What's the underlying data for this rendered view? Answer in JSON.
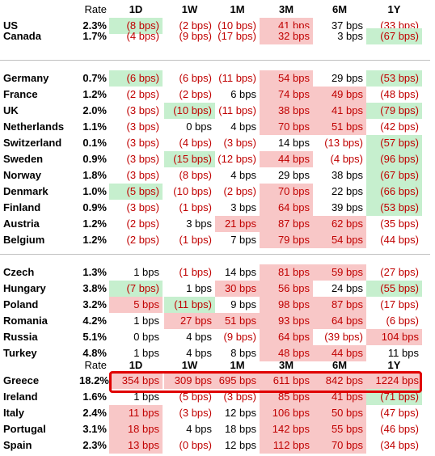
{
  "header_labels": [
    "Rate",
    "1D",
    "1W",
    "1M",
    "3M",
    "6M",
    "1Y"
  ],
  "colors": {
    "negative_text": "#c00000",
    "red_fill": "#f8c7c7",
    "green_fill": "#c6efce",
    "box": "#e00000"
  },
  "rows": [
    {
      "name": "US",
      "rate": "2.3%",
      "values": [
        "(8 bps)",
        "(2 bps)",
        "(10 bps)",
        "41 bps",
        "37 bps",
        "(33 bps)"
      ],
      "fills": [
        "g",
        "",
        "",
        "r",
        "",
        ""
      ]
    },
    {
      "name": "Canada",
      "rate": "1.7%",
      "values": [
        "(4 bps)",
        "(9 bps)",
        "(17 bps)",
        "32 bps",
        "3 bps",
        "(67 bps)"
      ],
      "fills": [
        "",
        "",
        "",
        "r",
        "",
        "g"
      ]
    },
    {
      "name": "Germany",
      "rate": "0.7%",
      "values": [
        "(6 bps)",
        "(6 bps)",
        "(11 bps)",
        "54 bps",
        "29 bps",
        "(53 bps)"
      ],
      "fills": [
        "g",
        "",
        "",
        "r",
        "",
        "g"
      ]
    },
    {
      "name": "France",
      "rate": "1.2%",
      "values": [
        "(2 bps)",
        "(2 bps)",
        "6 bps",
        "74 bps",
        "49 bps",
        "(48 bps)"
      ],
      "fills": [
        "",
        "",
        "",
        "r",
        "r",
        ""
      ]
    },
    {
      "name": "UK",
      "rate": "2.0%",
      "values": [
        "(3 bps)",
        "(10 bps)",
        "(11 bps)",
        "38 bps",
        "41 bps",
        "(79 bps)"
      ],
      "fills": [
        "",
        "g",
        "",
        "r",
        "r",
        "g"
      ]
    },
    {
      "name": "Netherlands",
      "rate": "1.1%",
      "values": [
        "(3 bps)",
        "0 bps",
        "4 bps",
        "70 bps",
        "51 bps",
        "(42 bps)"
      ],
      "fills": [
        "",
        "",
        "",
        "r",
        "r",
        ""
      ]
    },
    {
      "name": "Switzerland",
      "rate": "0.1%",
      "values": [
        "(3 bps)",
        "(4 bps)",
        "(3 bps)",
        "14 bps",
        "(13 bps)",
        "(57 bps)"
      ],
      "fills": [
        "",
        "",
        "",
        "",
        "",
        "g"
      ]
    },
    {
      "name": "Sweden",
      "rate": "0.9%",
      "values": [
        "(3 bps)",
        "(15 bps)",
        "(12 bps)",
        "44 bps",
        "(4 bps)",
        "(96 bps)"
      ],
      "fills": [
        "",
        "g",
        "",
        "r",
        "",
        "g"
      ]
    },
    {
      "name": "Norway",
      "rate": "1.8%",
      "values": [
        "(3 bps)",
        "(8 bps)",
        "4 bps",
        "29 bps",
        "38 bps",
        "(67 bps)"
      ],
      "fills": [
        "",
        "",
        "",
        "",
        "",
        "g"
      ]
    },
    {
      "name": "Denmark",
      "rate": "1.0%",
      "values": [
        "(5 bps)",
        "(10 bps)",
        "(2 bps)",
        "70 bps",
        "22 bps",
        "(66 bps)"
      ],
      "fills": [
        "g",
        "",
        "",
        "r",
        "",
        "g"
      ]
    },
    {
      "name": "Finland",
      "rate": "0.9%",
      "values": [
        "(3 bps)",
        "(1 bps)",
        "3 bps",
        "64 bps",
        "39 bps",
        "(53 bps)"
      ],
      "fills": [
        "",
        "",
        "",
        "r",
        "",
        "g"
      ]
    },
    {
      "name": "Austria",
      "rate": "1.2%",
      "values": [
        "(2 bps)",
        "3 bps",
        "21 bps",
        "87 bps",
        "62 bps",
        "(35 bps)"
      ],
      "fills": [
        "",
        "",
        "r",
        "r",
        "r",
        ""
      ]
    },
    {
      "name": "Belgium",
      "rate": "1.2%",
      "values": [
        "(2 bps)",
        "(1 bps)",
        "7 bps",
        "79 bps",
        "54 bps",
        "(44 bps)"
      ],
      "fills": [
        "",
        "",
        "",
        "r",
        "r",
        ""
      ]
    },
    {
      "name": "Czech",
      "rate": "1.3%",
      "values": [
        "1 bps",
        "(1 bps)",
        "14 bps",
        "81 bps",
        "59 bps",
        "(27 bps)"
      ],
      "fills": [
        "",
        "",
        "",
        "r",
        "r",
        ""
      ]
    },
    {
      "name": "Hungary",
      "rate": "3.8%",
      "values": [
        "(7 bps)",
        "1 bps",
        "30 bps",
        "56 bps",
        "24 bps",
        "(55 bps)"
      ],
      "fills": [
        "g",
        "",
        "r",
        "r",
        "",
        "g"
      ]
    },
    {
      "name": "Poland",
      "rate": "3.2%",
      "values": [
        "5 bps",
        "(11 bps)",
        "9 bps",
        "98 bps",
        "87 bps",
        "(17 bps)"
      ],
      "fills": [
        "r",
        "g",
        "",
        "r",
        "r",
        ""
      ]
    },
    {
      "name": "Romania",
      "rate": "4.2%",
      "values": [
        "1 bps",
        "27 bps",
        "51 bps",
        "93 bps",
        "64 bps",
        "(6 bps)"
      ],
      "fills": [
        "",
        "r",
        "r",
        "r",
        "r",
        ""
      ]
    },
    {
      "name": "Russia",
      "rate": "5.1%",
      "values": [
        "0 bps",
        "4 bps",
        "(9 bps)",
        "64 bps",
        "(39 bps)",
        "104 bps"
      ],
      "fills": [
        "",
        "",
        "",
        "r",
        "",
        "r"
      ]
    },
    {
      "name": "Turkey",
      "rate": "4.8%",
      "values": [
        "1 bps",
        "4 bps",
        "8 bps",
        "48 bps",
        "44 bps",
        "11 bps"
      ],
      "fills": [
        "",
        "",
        "",
        "r",
        "r",
        ""
      ]
    },
    {
      "name": "Greece",
      "rate": "18.2%",
      "values": [
        "354 bps",
        "309 bps",
        "695 bps",
        "611 bps",
        "842 bps",
        "1224 bps"
      ],
      "fills": [
        "r",
        "r",
        "r",
        "r",
        "r",
        "r"
      ]
    },
    {
      "name": "Ireland",
      "rate": "1.6%",
      "values": [
        "1 bps",
        "(5 bps)",
        "(3 bps)",
        "85 bps",
        "41 bps",
        "(71 bps)"
      ],
      "fills": [
        "",
        "",
        "",
        "r",
        "r",
        "g"
      ]
    },
    {
      "name": "Italy",
      "rate": "2.4%",
      "values": [
        "11 bps",
        "(3 bps)",
        "12 bps",
        "106 bps",
        "50 bps",
        "(47 bps)"
      ],
      "fills": [
        "r",
        "",
        "",
        "r",
        "r",
        ""
      ]
    },
    {
      "name": "Portugal",
      "rate": "3.1%",
      "values": [
        "18 bps",
        "4 bps",
        "18 bps",
        "142 bps",
        "55 bps",
        "(46 bps)"
      ],
      "fills": [
        "r",
        "",
        "",
        "r",
        "r",
        ""
      ]
    },
    {
      "name": "Spain",
      "rate": "2.3%",
      "values": [
        "13 bps",
        "(0 bps)",
        "12 bps",
        "112 bps",
        "70 bps",
        "(34 bps)"
      ],
      "fills": [
        "r",
        "",
        "",
        "r",
        "r",
        ""
      ]
    }
  ]
}
